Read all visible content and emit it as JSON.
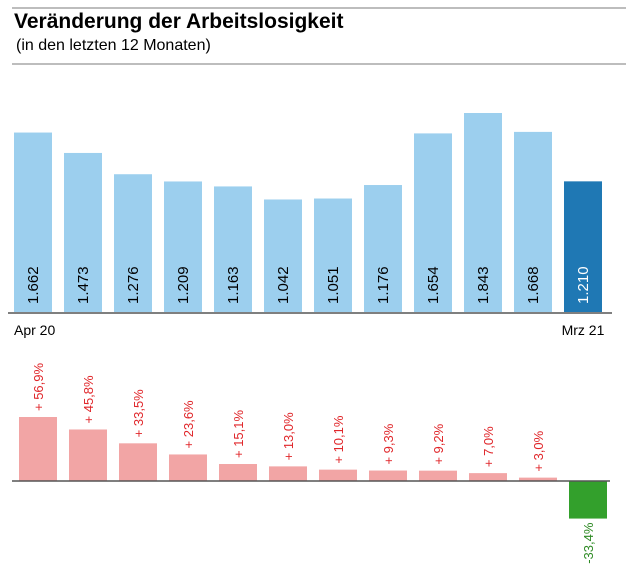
{
  "header": {
    "title": "Veränderung der Arbeitslosigkeit",
    "subtitle": "(in den letzten 12 Monaten)"
  },
  "colors": {
    "bar": "#9ccfee",
    "bar_highlight": "#1f78b4",
    "change_positive": "#f2a5a5",
    "change_negative": "#33a02c",
    "label_positive": "#e0262a",
    "label_negative": "#2e8a24",
    "axis": "#555555"
  },
  "chart_data": [
    {
      "type": "bar",
      "categories": [
        "",
        "",
        "",
        "",
        "",
        "",
        "",
        "",
        "",
        "",
        "",
        ""
      ],
      "values": [
        1662,
        1473,
        1276,
        1209,
        1163,
        1042,
        1051,
        1176,
        1654,
        1843,
        1668,
        1210
      ],
      "value_labels": [
        "1.662",
        "1.473",
        "1.276",
        "1.209",
        "1.163",
        "1.042",
        "1.051",
        "1.176",
        "1.654",
        "1.843",
        "1.668",
        "1.210"
      ],
      "x_tick_labels": {
        "first": "Apr 20",
        "last": "Mrz 21"
      },
      "highlight_index": 11,
      "ylim": [
        0,
        1843
      ]
    },
    {
      "type": "bar",
      "categories": [
        "",
        "",
        "",
        "",
        "",
        "",
        "",
        "",
        "",
        "",
        "",
        ""
      ],
      "values": [
        56.9,
        45.8,
        33.5,
        23.6,
        15.1,
        13.0,
        10.1,
        9.3,
        9.2,
        7.0,
        3.0,
        -33.4
      ],
      "value_labels": [
        "+ 56,9%",
        "+ 45,8%",
        "+ 33,5%",
        "+ 23,6%",
        "+ 15,1%",
        "+ 13,0%",
        "+ 10,1%",
        "+ 9,3%",
        "+ 9,2%",
        "+ 7,0%",
        "+ 3,0%",
        "-33,4%"
      ],
      "ylim": [
        -33.4,
        56.9
      ]
    }
  ]
}
